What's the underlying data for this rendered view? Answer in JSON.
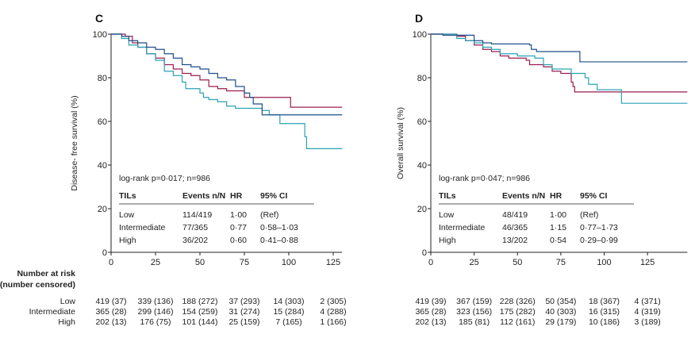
{
  "colors": {
    "low": "#9b1d4f",
    "intermediate": "#2aa3b5",
    "high": "#1f4f8a",
    "axis": "#222222"
  },
  "risk_header": [
    "Number at risk",
    "(number censored)"
  ],
  "chart_data": [
    {
      "type": "line",
      "panel": "C",
      "ylabel": "Disease- free survival (%)",
      "xlabel": "",
      "xlim": [
        0,
        130
      ],
      "ylim": [
        0,
        100
      ],
      "xticks": [
        "0",
        "25",
        "50",
        "75",
        "100",
        "125"
      ],
      "yticks": [
        "0",
        "20",
        "40",
        "60",
        "80",
        "100"
      ],
      "grid": false,
      "annotation": "log-rank p=0·017; n=986",
      "table": {
        "headers": [
          "TILs",
          "Events n/N",
          "HR",
          "95% CI"
        ],
        "rows": [
          [
            "Low",
            "114/419",
            "1·00",
            "(Ref)"
          ],
          [
            "Intermediate",
            "77/365",
            "0·77",
            "0·58–1·03"
          ],
          [
            "High",
            "36/202",
            "0·60",
            "0·41–0·88"
          ]
        ]
      },
      "series": [
        {
          "group": "low",
          "x": [
            0,
            8,
            12,
            15,
            20,
            25,
            30,
            35,
            40,
            45,
            50,
            55,
            60,
            65,
            70,
            75,
            100,
            101,
            130
          ],
          "y": [
            100,
            99,
            96,
            94,
            91,
            89,
            86,
            84,
            82,
            81,
            79,
            76,
            75,
            74,
            74,
            71,
            71,
            66.5,
            66.5
          ]
        },
        {
          "group": "intermediate",
          "x": [
            0,
            6,
            10,
            15,
            20,
            25,
            30,
            35,
            40,
            42,
            50,
            52,
            55,
            60,
            65,
            70,
            85,
            89,
            95,
            109,
            110,
            130
          ],
          "y": [
            100,
            98,
            95,
            94,
            91,
            88,
            83,
            81,
            78,
            75,
            73,
            71,
            70,
            69,
            67,
            66,
            65,
            63,
            59,
            53,
            47.5,
            47.5
          ]
        },
        {
          "group": "high",
          "x": [
            0,
            6,
            10,
            15,
            20,
            25,
            30,
            35,
            40,
            45,
            50,
            55,
            60,
            65,
            70,
            75,
            78,
            80,
            85,
            130
          ],
          "y": [
            100,
            99,
            97,
            96,
            94,
            93,
            91,
            89,
            86,
            85,
            84,
            82,
            80,
            79,
            76,
            73,
            71,
            68,
            63,
            63
          ]
        }
      ],
      "at_risk": {
        "rows": [
          "Low",
          "Intermediate",
          "High"
        ],
        "values": [
          [
            "419 (37)",
            "339 (136)",
            "188 (272)",
            "37 (293)",
            "14 (303)",
            "2 (305)"
          ],
          [
            "365 (28)",
            "299 (146)",
            "154 (259)",
            "31 (274)",
            "15 (284)",
            "4 (288)"
          ],
          [
            "202 (13)",
            "176 (75)",
            "101 (144)",
            "25 (159)",
            "7 (165)",
            "1 (166)"
          ]
        ]
      }
    },
    {
      "type": "line",
      "panel": "D",
      "ylabel": "Overall survival (%)",
      "xlabel": "",
      "xlim": [
        0,
        148
      ],
      "ylim": [
        0,
        100
      ],
      "xticks": [
        "0",
        "25",
        "50",
        "75",
        "100",
        "125"
      ],
      "yticks": [
        "0",
        "20",
        "40",
        "60",
        "80",
        "100"
      ],
      "grid": false,
      "annotation": "log-rank p=0·047; n=986",
      "table": {
        "headers": [
          "TILs",
          "Events n/N",
          "HR",
          "95% CI"
        ],
        "rows": [
          [
            "Low",
            "48/419",
            "1·00",
            "(Ref)"
          ],
          [
            "Intermediate",
            "46/365",
            "1·15",
            "0·77–1·73"
          ],
          [
            "High",
            "13/202",
            "0·54",
            "0·29–0·99"
          ]
        ]
      },
      "series": [
        {
          "group": "low",
          "x": [
            0,
            15,
            20,
            25,
            30,
            35,
            40,
            45,
            55,
            57,
            65,
            70,
            75,
            81,
            82,
            83,
            148
          ],
          "y": [
            100,
            99,
            97,
            95,
            93,
            92,
            90,
            89,
            88,
            86,
            85,
            83,
            82,
            78,
            76,
            73.5,
            73.5
          ]
        },
        {
          "group": "intermediate",
          "x": [
            0,
            15,
            20,
            25,
            30,
            35,
            40,
            50,
            60,
            65,
            70,
            81,
            89,
            91,
            96,
            110,
            148
          ],
          "y": [
            100,
            98,
            97,
            96,
            94,
            93,
            91,
            90,
            89,
            86,
            84,
            82,
            80,
            77,
            74.5,
            68.3,
            68.3
          ]
        },
        {
          "group": "high",
          "x": [
            0,
            7,
            25,
            30,
            35,
            57,
            58,
            61,
            86,
            148
          ],
          "y": [
            100,
            99.5,
            97,
            96,
            95.5,
            95,
            93,
            92,
            87.3,
            87.3
          ]
        }
      ],
      "at_risk": {
        "rows": [
          "Low",
          "Intermediate",
          "High"
        ],
        "values": [
          [
            "419 (39)",
            "367 (159)",
            "228 (326)",
            "50 (354)",
            "18 (367)",
            "4 (371)"
          ],
          [
            "365 (28)",
            "323 (156)",
            "175 (282)",
            "40 (303)",
            "16 (315)",
            "4 (319)"
          ],
          [
            "202 (13)",
            "185 (81)",
            "112 (161)",
            "29 (179)",
            "10 (186)",
            "3 (189)"
          ]
        ]
      }
    }
  ]
}
